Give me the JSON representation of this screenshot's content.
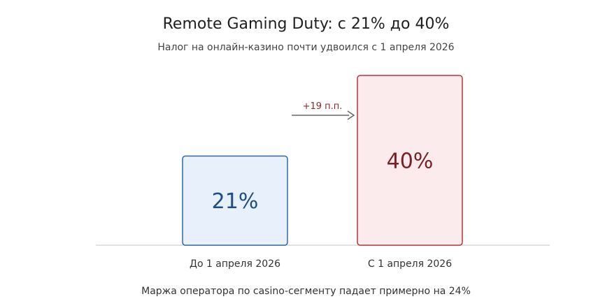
{
  "header": {
    "title": "Remote Gaming Duty: с 21% до 40%",
    "subtitle": "Налог на онлайн-казино почти удвоился с 1 апреля 2026"
  },
  "footer": {
    "note": "Маржа оператора по casino-сегменту падает примерно на 24%"
  },
  "chart_data": {
    "type": "bar",
    "categories": [
      "До 1 апреля 2026",
      "С 1 апреля 2026"
    ],
    "values": [
      21,
      40
    ],
    "value_labels": [
      "21%",
      "40%"
    ],
    "ylim": [
      0,
      40
    ],
    "grid": false,
    "annotation": "+19 п.п.",
    "colors": {
      "bar_fills": [
        "#e8f1fb",
        "#fcebec"
      ],
      "bar_strokes": [
        "#2f68a8",
        "#b8353d"
      ],
      "label_colors": [
        "#1e4e86",
        "#7a1f24"
      ],
      "annotation": "#8b2a2f",
      "arrow": "#666666",
      "baseline": "#d9d9d9"
    }
  }
}
